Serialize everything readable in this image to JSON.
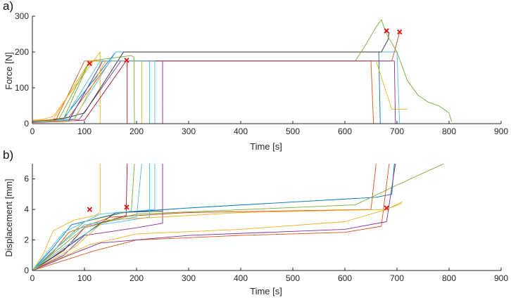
{
  "chart_data": [
    {
      "panel_label": "a)",
      "type": "line",
      "xlabel": "Time [s]",
      "ylabel": "Force [N]",
      "xlim": [
        0,
        900
      ],
      "ylim": [
        0,
        300
      ],
      "xticks": [
        "0",
        "100",
        "200",
        "300",
        "400",
        "500",
        "600",
        "700",
        "800",
        "900"
      ],
      "yticks": [
        "0",
        "100",
        "200",
        "300"
      ],
      "grid": false,
      "legend": "none",
      "series": [
        {
          "color": "#0072BD",
          "points": [
            [
              0,
              5
            ],
            [
              20,
              8
            ],
            [
              40,
              12
            ],
            [
              60,
              15
            ],
            [
              160,
              200
            ],
            [
              660,
              200
            ],
            [
              665,
              200
            ],
            [
              668,
              0
            ]
          ]
        },
        {
          "color": "#D95319",
          "points": [
            [
              0,
              8
            ],
            [
              25,
              10
            ],
            [
              50,
              14
            ],
            [
              70,
              18
            ],
            [
              150,
              175
            ],
            [
              625,
              175
            ],
            [
              650,
              175
            ],
            [
              655,
              0
            ]
          ]
        },
        {
          "color": "#EDB120",
          "points": [
            [
              0,
              10
            ],
            [
              20,
              12
            ],
            [
              40,
              20
            ],
            [
              130,
              200
            ],
            [
              130,
              0
            ]
          ]
        },
        {
          "color": "#7E2F8E",
          "points": [
            [
              0,
              5
            ],
            [
              50,
              8
            ],
            [
              90,
              12
            ],
            [
              170,
              175
            ],
            [
              250,
              175
            ],
            [
              250,
              0
            ]
          ]
        },
        {
          "color": "#77AC30",
          "points": [
            [
              0,
              6
            ],
            [
              30,
              9
            ],
            [
              60,
              14
            ],
            [
              110,
              175
            ],
            [
              190,
              190
            ],
            [
              195,
              185
            ],
            [
              196,
              0
            ]
          ]
        },
        {
          "color": "#4DBEEE",
          "points": [
            [
              0,
              4
            ],
            [
              40,
              8
            ],
            [
              80,
              14
            ],
            [
              160,
              200
            ],
            [
              700,
              200
            ],
            [
              705,
              0
            ]
          ]
        },
        {
          "color": "#A2142F",
          "points": [
            [
              0,
              3
            ],
            [
              60,
              6
            ],
            [
              100,
              10
            ],
            [
              180,
              175
            ],
            [
              182,
              175
            ],
            [
              182,
              0
            ]
          ]
        },
        {
          "color": "#333333",
          "points": [
            [
              0,
              7
            ],
            [
              30,
              10
            ],
            [
              60,
              14
            ],
            [
              100,
              30
            ],
            [
              175,
              200
            ],
            [
              660,
              200
            ],
            [
              670,
              200
            ],
            [
              683,
              235
            ],
            [
              685,
              255
            ]
          ]
        },
        {
          "color": "#77AC30",
          "points": [
            [
              0,
              5
            ],
            [
              50,
              10
            ],
            [
              110,
              175
            ],
            [
              620,
              175
            ],
            [
              640,
              220
            ],
            [
              660,
              270
            ],
            [
              670,
              290
            ],
            [
              680,
              250
            ],
            [
              700,
              200
            ],
            [
              720,
              120
            ],
            [
              740,
              80
            ],
            [
              760,
              60
            ],
            [
              780,
              50
            ],
            [
              800,
              30
            ],
            [
              805,
              5
            ]
          ]
        },
        {
          "color": "#D95319",
          "points": [
            [
              0,
              6
            ],
            [
              45,
              10
            ],
            [
              100,
              175
            ],
            [
              690,
              175
            ],
            [
              695,
              200
            ],
            [
              705,
              255
            ]
          ]
        },
        {
          "color": "#EDB120",
          "points": [
            [
              0,
              8
            ],
            [
              40,
              12
            ],
            [
              110,
              175
            ],
            [
              660,
              175
            ],
            [
              690,
              40
            ],
            [
              720,
              40
            ]
          ]
        },
        {
          "color": "#4DBEEE",
          "points": [
            [
              0,
              5
            ],
            [
              70,
              10
            ],
            [
              135,
              175
            ],
            [
              225,
              175
            ],
            [
              225,
              0
            ]
          ]
        },
        {
          "color": "#7E2F8E",
          "points": [
            [
              0,
              5
            ],
            [
              70,
              8
            ],
            [
              135,
              175
            ],
            [
              695,
              175
            ],
            [
              697,
              0
            ]
          ]
        },
        {
          "color": "#EDB120",
          "points": [
            [
              0,
              4
            ],
            [
              80,
              8
            ],
            [
              140,
              175
            ],
            [
              210,
              175
            ],
            [
              210,
              0
            ]
          ]
        },
        {
          "color": "#4DBEEE",
          "points": [
            [
              0,
              4
            ],
            [
              60,
              10
            ],
            [
              130,
              175
            ],
            [
              235,
              175
            ],
            [
              235,
              0
            ]
          ]
        }
      ],
      "markers": [
        {
          "label": "x",
          "color": "#e01010",
          "points": [
            [
              110,
              168
            ],
            [
              181,
              177
            ],
            [
              680,
              259
            ],
            [
              705,
              256
            ]
          ]
        }
      ]
    },
    {
      "panel_label": "b)",
      "type": "line",
      "xlabel": "Time [s]",
      "ylabel": "Displacement [mm]",
      "xlim": [
        0,
        900
      ],
      "ylim": [
        0,
        7
      ],
      "xticks": [
        "0",
        "100",
        "200",
        "300",
        "400",
        "500",
        "600",
        "700",
        "800",
        "900"
      ],
      "yticks": [
        "0",
        "2",
        "4",
        "6"
      ],
      "grid": false,
      "legend": "none",
      "series": [
        {
          "color": "#0072BD",
          "points": [
            [
              0,
              0
            ],
            [
              40,
              1.5
            ],
            [
              75,
              3.0
            ],
            [
              170,
              3.8
            ],
            [
              300,
              4.1
            ],
            [
              660,
              4.8
            ],
            [
              690,
              5.0
            ],
            [
              695,
              7
            ]
          ]
        },
        {
          "color": "#D95319",
          "points": [
            [
              0,
              0
            ],
            [
              40,
              1.2
            ],
            [
              70,
              2.5
            ],
            [
              150,
              3.5
            ],
            [
              300,
              3.8
            ],
            [
              650,
              4.0
            ],
            [
              660,
              7
            ]
          ]
        },
        {
          "color": "#EDB120",
          "points": [
            [
              0,
              0
            ],
            [
              20,
              1.0
            ],
            [
              40,
              2.6
            ],
            [
              80,
              3.3
            ],
            [
              120,
              3.6
            ],
            [
              130,
              3.8
            ],
            [
              130,
              7
            ]
          ]
        },
        {
          "color": "#7E2F8E",
          "points": [
            [
              0,
              0
            ],
            [
              60,
              1.0
            ],
            [
              100,
              2.3
            ],
            [
              200,
              2.8
            ],
            [
              250,
              3.1
            ],
            [
              250,
              7
            ]
          ]
        },
        {
          "color": "#77AC30",
          "points": [
            [
              0,
              0
            ],
            [
              50,
              1.6
            ],
            [
              100,
              3.2
            ],
            [
              190,
              3.9
            ],
            [
              196,
              7
            ]
          ]
        },
        {
          "color": "#4DBEEE",
          "points": [
            [
              0,
              0
            ],
            [
              40,
              1.3
            ],
            [
              100,
              3.0
            ],
            [
              200,
              3.5
            ],
            [
              210,
              7
            ]
          ]
        },
        {
          "color": "#A2142F",
          "points": [
            [
              0,
              0
            ],
            [
              60,
              1.3
            ],
            [
              100,
              2.8
            ],
            [
              180,
              3.6
            ],
            [
              182,
              7
            ]
          ]
        },
        {
          "color": "#333333",
          "points": [
            [
              0,
              0
            ],
            [
              40,
              0.9
            ],
            [
              90,
              2.1
            ],
            [
              160,
              3.8
            ],
            [
              250,
              3.9
            ]
          ]
        },
        {
          "color": "#77AC30",
          "points": [
            [
              0,
              0
            ],
            [
              100,
              2.8
            ],
            [
              200,
              3.7
            ],
            [
              620,
              4.3
            ],
            [
              700,
              5.6
            ],
            [
              790,
              7
            ]
          ]
        },
        {
          "color": "#D95319",
          "points": [
            [
              0,
              0
            ],
            [
              120,
              1.3
            ],
            [
              200,
              2.0
            ],
            [
              400,
              2.3
            ],
            [
              600,
              2.5
            ],
            [
              670,
              2.9
            ],
            [
              685,
              7
            ]
          ]
        },
        {
          "color": "#EDB120",
          "points": [
            [
              0,
              0
            ],
            [
              40,
              0.6
            ],
            [
              110,
              1.7
            ],
            [
              200,
              2.4
            ],
            [
              400,
              2.7
            ],
            [
              600,
              3.2
            ],
            [
              670,
              3.9
            ],
            [
              710,
              4.4
            ]
          ]
        },
        {
          "color": "#4DBEEE",
          "points": [
            [
              0,
              0
            ],
            [
              60,
              1.5
            ],
            [
              130,
              3.0
            ],
            [
              225,
              3.5
            ],
            [
              225,
              7
            ]
          ]
        },
        {
          "color": "#7E2F8E",
          "points": [
            [
              0,
              0
            ],
            [
              70,
              1.0
            ],
            [
              130,
              1.8
            ],
            [
              300,
              2.3
            ],
            [
              600,
              2.7
            ],
            [
              680,
              3.2
            ],
            [
              697,
              7
            ]
          ]
        },
        {
          "color": "#EDB120",
          "points": [
            [
              0,
              0
            ],
            [
              80,
              1.5
            ],
            [
              140,
              3.3
            ],
            [
              400,
              3.8
            ],
            [
              680,
              4.0
            ],
            [
              710,
              4.5
            ]
          ]
        },
        {
          "color": "#4DBEEE",
          "points": [
            [
              0,
              0
            ],
            [
              60,
              2.5
            ],
            [
              130,
              3.7
            ],
            [
              235,
              4.0
            ],
            [
              235,
              7
            ]
          ]
        }
      ],
      "markers": [
        {
          "label": "x",
          "color": "#e01010",
          "points": [
            [
              110,
              4.0
            ],
            [
              181,
              4.15
            ],
            [
              680,
              4.1
            ]
          ]
        }
      ]
    }
  ]
}
